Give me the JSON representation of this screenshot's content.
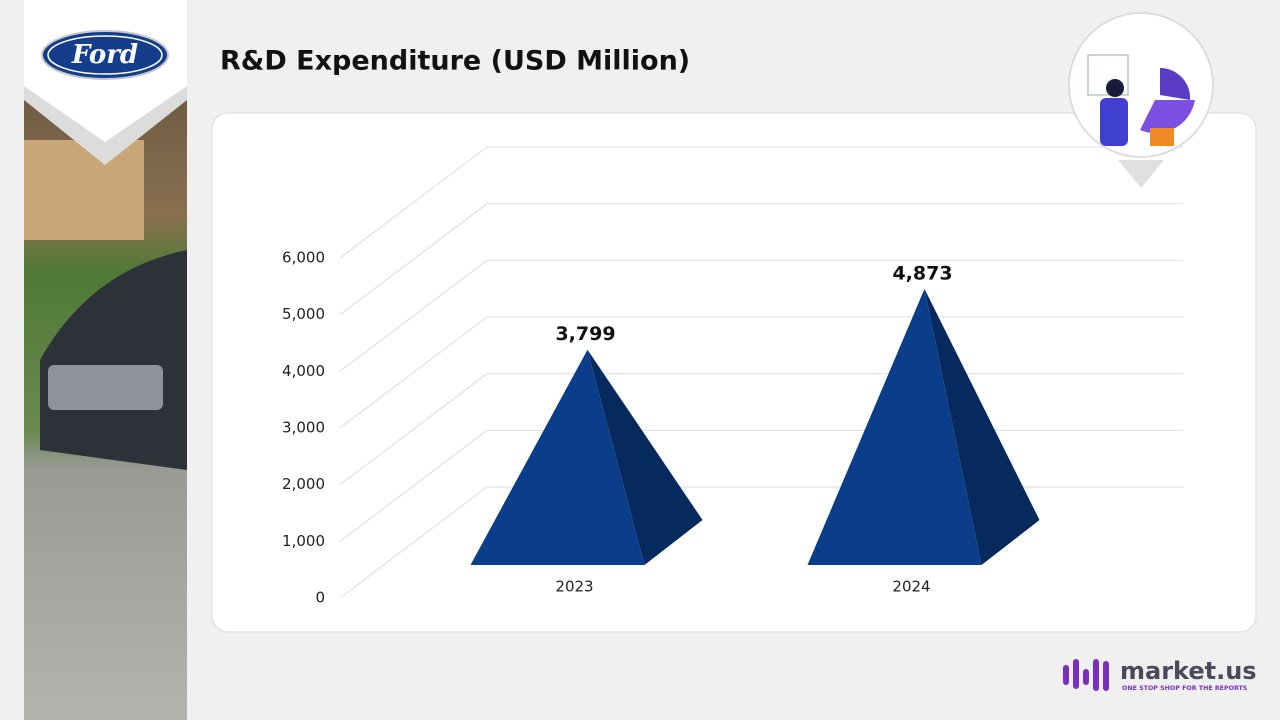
{
  "logo": {
    "brand": "Ford"
  },
  "footer": {
    "brand": "market.us",
    "tagline": "ONE STOP SHOP FOR THE REPORTS"
  },
  "chart_data": {
    "type": "pyramid",
    "title": "R&D Expenditure (USD Million)",
    "categories": [
      "2023",
      "2024"
    ],
    "values": [
      3799,
      4873
    ],
    "value_labels": [
      "3,799",
      "4,873"
    ],
    "color": "#0a3d8a",
    "side_color": "#062a5e",
    "ylim": [
      0,
      6000
    ],
    "yticks": [
      0,
      {
        "value": 1000,
        "label": "1,000"
      },
      {
        "value": 2000,
        "label": "2,000"
      },
      {
        "value": 3000,
        "label": "3,000"
      },
      {
        "value": 4000,
        "label": "4,000"
      },
      {
        "value": 5000,
        "label": "5,000"
      },
      {
        "value": 6000,
        "label": "6,000"
      }
    ],
    "grid": true
  }
}
